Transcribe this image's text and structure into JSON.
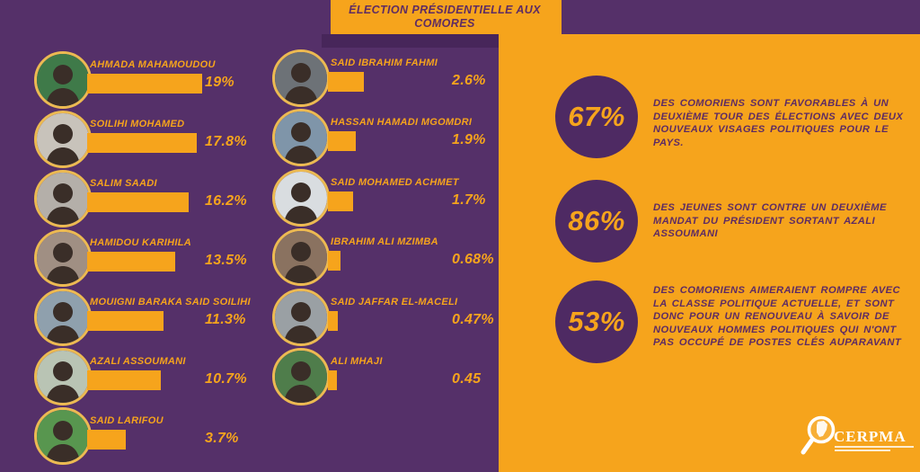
{
  "title": {
    "line1": "ÉLECTION PRÉSIDENTIELLE AUX",
    "line2": "COMORES"
  },
  "candidates_left": [
    {
      "name": "AHMADA MAHAMOUDOU",
      "pct": 19,
      "label": "19%",
      "photo_color": "#3f7a49"
    },
    {
      "name": "SOILIHI MOHAMED",
      "pct": 17.8,
      "label": "17.8%",
      "photo_color": "#c8c3bb"
    },
    {
      "name": "SALIM SAADI",
      "pct": 16.2,
      "label": "16.2%",
      "photo_color": "#b4afa9"
    },
    {
      "name": "HAMIDOU KARIHILA",
      "pct": 13.5,
      "label": "13.5%",
      "photo_color": "#a08f83"
    },
    {
      "name": "MOUIGNI BARAKA SAID SOILIHI",
      "pct": 11.3,
      "label": "11.3%",
      "photo_color": "#8fa0ad"
    },
    {
      "name": "AZALI ASSOUMANI",
      "pct": 10.7,
      "label": "10.7%",
      "photo_color": "#b9c4b4"
    },
    {
      "name": "SAID LARIFOU",
      "pct": 3.7,
      "label": "3.7%",
      "photo_color": "#58964f"
    }
  ],
  "candidates_right": [
    {
      "name": "SAID IBRAHIM FAHMI",
      "pct": 2.6,
      "label": "2.6%",
      "photo_color": "#6d7277"
    },
    {
      "name": "HASSAN HAMADI MGOMDRI",
      "pct": 1.9,
      "label": "1.9%",
      "photo_color": "#7f95a9"
    },
    {
      "name": "SAID MOHAMED ACHMET",
      "pct": 1.7,
      "label": "1.7%",
      "photo_color": "#d9dde0"
    },
    {
      "name": "IBRAHIM ALI MZIMBA",
      "pct": 0.68,
      "label": "0.68%",
      "photo_color": "#8a7260"
    },
    {
      "name": "SAID JAFFAR EL-MACELI",
      "pct": 0.47,
      "label": "0.47%",
      "photo_color": "#9aa0a4"
    },
    {
      "name": "ALI MHAJI",
      "pct": 0.45,
      "label": "0.45",
      "photo_color": "#4f7d4b"
    }
  ],
  "stats": [
    {
      "value": "67%",
      "text": "DES COMORIENS SONT FAVORABLES À UN DEUXIÈME TOUR DES ÉLECTIONS AVEC DEUX NOUVEAUX VISAGES POLITIQUES POUR LE PAYS."
    },
    {
      "value": "86%",
      "text": "DES JEUNES SONT CONTRE UN DEUXIÈME MANDAT DU PRÉSIDENT SORTANT AZALI ASSOUMANI"
    },
    {
      "value": "53%",
      "text": "DES COMORIENS AIMERAIENT ROMPRE AVEC LA CLASSE POLITIQUE ACTUELLE, ET SONT DONC POUR UN RENOUVEAU À SAVOIR DE NOUVEAUX HOMMES POLITIQUES QUI N'ONT PAS OCCUPÉ DE POSTES CLÉS AUPARAVANT"
    }
  ],
  "logo": {
    "text": "CERPMA"
  },
  "colors": {
    "purple": "#553069",
    "purple_dark": "#47265a",
    "circle_purple": "#4e2a63",
    "orange": "#f6a41c",
    "title_text": "#5e2c63"
  },
  "chart_data": {
    "type": "bar",
    "title": "ÉLECTION PRÉSIDENTIELLE AUX COMORES",
    "categories": [
      "AHMADA MAHAMOUDOU",
      "SOILIHI MOHAMED",
      "SALIM SAADI",
      "HAMIDOU KARIHILA",
      "MOUIGNI BARAKA SAID SOILIHI",
      "AZALI ASSOUMANI",
      "SAID LARIFOU",
      "SAID IBRAHIM FAHMI",
      "HASSAN HAMADI MGOMDRI",
      "SAID MOHAMED ACHMET",
      "IBRAHIM ALI MZIMBA",
      "SAID JAFFAR EL-MACELI",
      "ALI MHAJI"
    ],
    "values": [
      19,
      17.8,
      16.2,
      13.5,
      11.3,
      10.7,
      3.7,
      2.6,
      1.9,
      1.7,
      0.68,
      0.47,
      0.45
    ],
    "unit": "%",
    "orientation": "horizontal",
    "annotations": [
      {
        "value": 67,
        "unit": "%",
        "text": "DES COMORIENS SONT FAVORABLES À UN DEUXIÈME TOUR DES ÉLECTIONS AVEC DEUX NOUVEAUX VISAGES POLITIQUES POUR LE PAYS."
      },
      {
        "value": 86,
        "unit": "%",
        "text": "DES JEUNES SONT CONTRE UN DEUXIÈME MANDAT DU PRÉSIDENT SORTANT AZALI ASSOUMANI"
      },
      {
        "value": 53,
        "unit": "%",
        "text": "DES COMORIENS AIMERAIENT ROMPRE AVEC LA CLASSE POLITIQUE ACTUELLE, ET SONT DONC POUR UN RENOUVEAU À SAVOIR DE NOUVEAUX HOMMES POLITIQUES QUI N'ONT PAS OCCUPÉ DE POSTES CLÉS AUPARAVANT"
      }
    ],
    "source_logo": "CERPMA"
  }
}
